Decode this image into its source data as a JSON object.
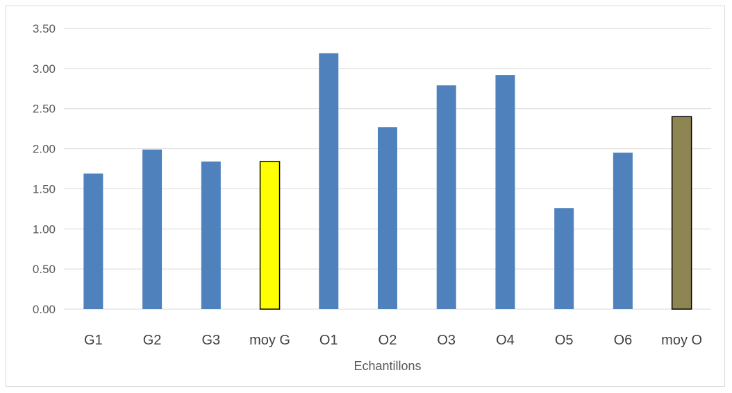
{
  "chart_data": {
    "type": "bar",
    "title": "",
    "xlabel": "Echantillons",
    "ylabel": "",
    "ylim": [
      0,
      3.5
    ],
    "yticks": [
      "0.00",
      "0.50",
      "1.00",
      "1.50",
      "2.00",
      "2.50",
      "3.00",
      "3.50"
    ],
    "grid": true,
    "legend": "none",
    "categories": [
      "G1",
      "G2",
      "G3",
      "moy G",
      "O1",
      "O2",
      "O3",
      "O4",
      "O5",
      "O6",
      "moy O"
    ],
    "values": [
      1.69,
      1.99,
      1.84,
      1.84,
      3.19,
      2.27,
      2.79,
      2.92,
      1.26,
      1.95,
      2.4
    ],
    "colors": {
      "default": "#4f81bd",
      "moy G": "#ffff00",
      "moy O": "#8e8652",
      "highlight_outline": "#000000",
      "grid": "#d9d9d9"
    }
  }
}
